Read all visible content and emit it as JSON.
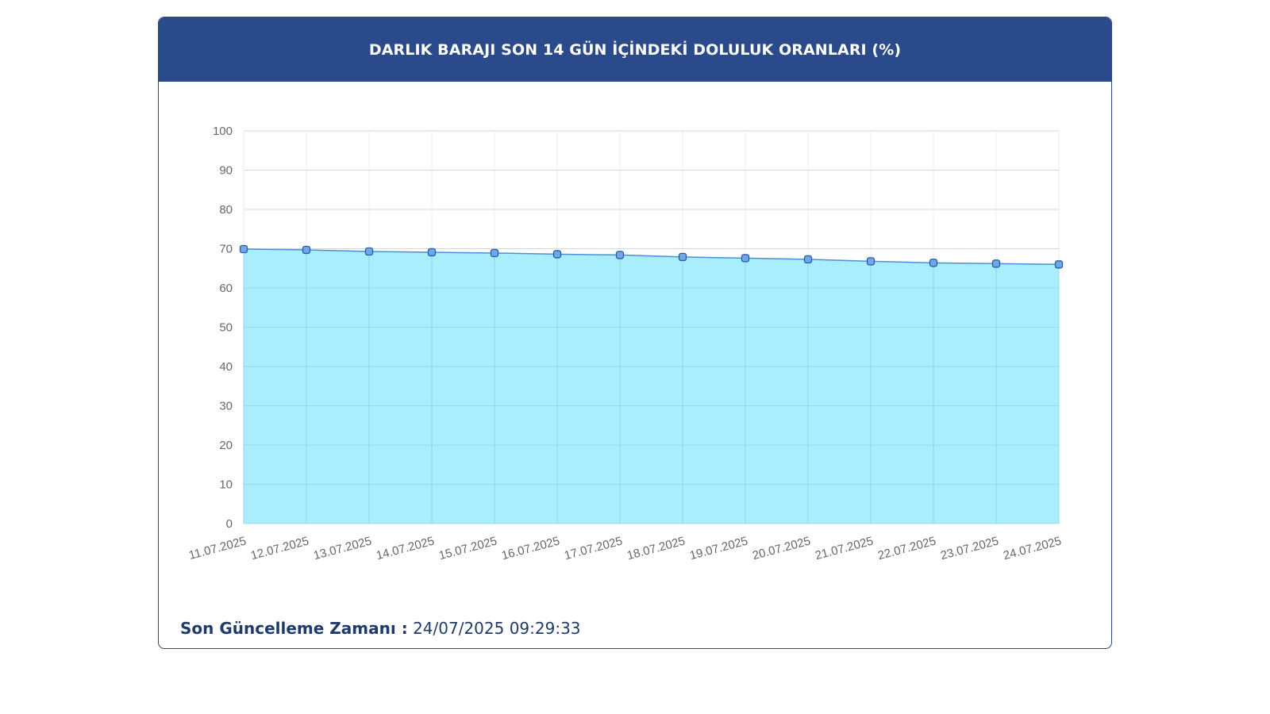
{
  "header": {
    "title": "DARLIK BARAJI SON 14 GÜN İÇİNDEKİ DOLULUK ORANLARI (%)"
  },
  "footer": {
    "label": "Son Güncelleme Zamanı :",
    "value": "24/07/2025 09:29:33"
  },
  "colors": {
    "header_bg": "#2b4a8b",
    "line": "#4a90d9",
    "fill": "#a8eefc",
    "marker_fill": "#6fa8e6",
    "marker_stroke": "#2b5aa8"
  },
  "chart_data": {
    "type": "area",
    "title": "DARLIK BARAJI SON 14 GÜN İÇİNDEKİ DOLULUK ORANLARI (%)",
    "xlabel": "",
    "ylabel": "",
    "ylim": [
      0,
      100
    ],
    "yticks": [
      "0",
      "10",
      "20",
      "30",
      "40",
      "50",
      "60",
      "70",
      "80",
      "90",
      "100"
    ],
    "grid": true,
    "legend": "none",
    "categories": [
      "11.07.2025",
      "12.07.2025",
      "13.07.2025",
      "14.07.2025",
      "15.07.2025",
      "16.07.2025",
      "17.07.2025",
      "18.07.2025",
      "19.07.2025",
      "20.07.2025",
      "21.07.2025",
      "22.07.2025",
      "23.07.2025",
      "24.07.2025"
    ],
    "series": [
      {
        "values": [
          69.9,
          69.7,
          69.3,
          69.1,
          68.9,
          68.6,
          68.4,
          67.9,
          67.6,
          67.3,
          66.8,
          66.4,
          66.2,
          66.0
        ]
      }
    ]
  }
}
